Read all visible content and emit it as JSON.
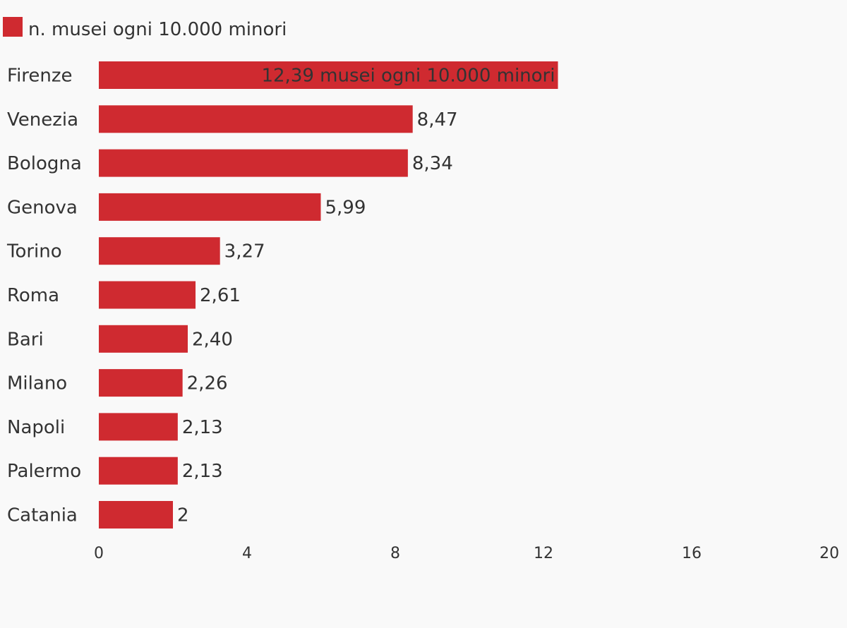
{
  "chart_data": {
    "type": "bar",
    "orientation": "horizontal",
    "legend": [
      {
        "label": "n. musei ogni 10.000 minori",
        "color": "#cf2a30"
      }
    ],
    "legend_position": "top-left",
    "categories": [
      "Firenze",
      "Venezia",
      "Bologna",
      "Genova",
      "Torino",
      "Roma",
      "Bari",
      "Milano",
      "Napoli",
      "Palermo",
      "Catania"
    ],
    "series": [
      {
        "name": "n. musei ogni 10.000 minori",
        "color": "#cf2a30",
        "values": [
          12.39,
          8.47,
          8.34,
          5.99,
          3.27,
          2.61,
          2.4,
          2.26,
          2.13,
          2.13,
          2
        ]
      }
    ],
    "value_labels": [
      "12,39 musei ogni 10.000 minori",
      "8,47",
      "8,34",
      "5,99",
      "3,27",
      "2,61",
      "2,40",
      "2,26",
      "2,13",
      "2,13",
      "2"
    ],
    "x_ticks": [
      "0",
      "4",
      "8",
      "12",
      "16",
      "20"
    ],
    "xlim": [
      0,
      20
    ],
    "grid": false
  }
}
